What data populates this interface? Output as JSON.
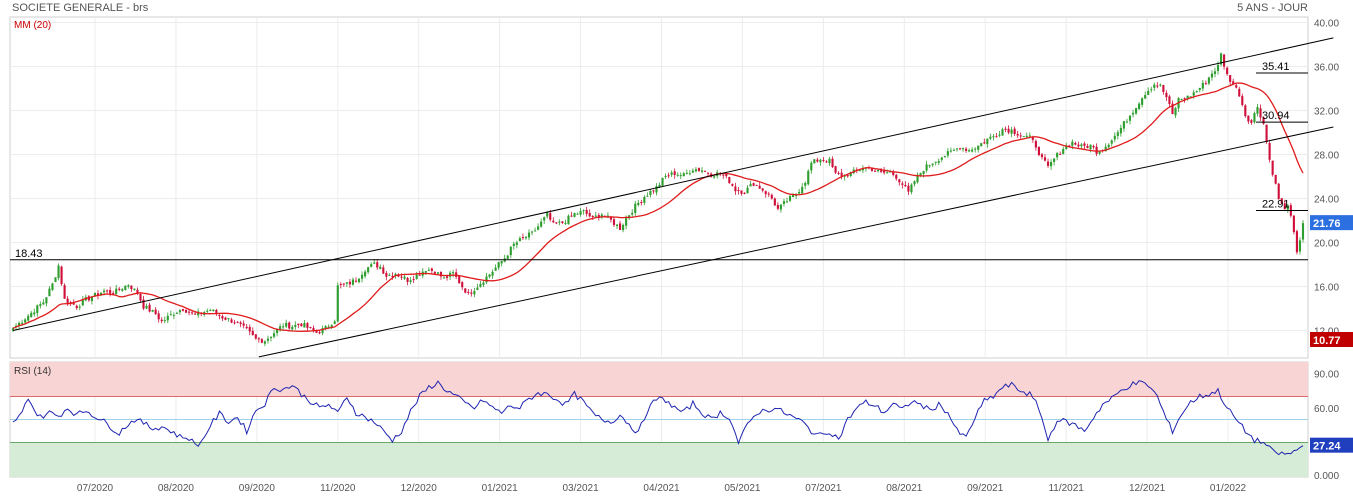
{
  "header": {
    "title": "SOCIETE GENERALE - brs",
    "period": "5 ANS - JOUR"
  },
  "colors": {
    "candle_up": "#2e9e2e",
    "candle_down": "#d0103a",
    "ma_line": "#e01b1b",
    "rsi_line": "#1f24b0",
    "overbought_fill": "#f9d4d4",
    "oversold_fill": "#d6ecd6",
    "last_price_badge": "#2b6fe0",
    "low_badge": "#c00000",
    "rsi_badge": "#1f3fbf"
  },
  "chart_data": [
    {
      "type": "candlestick",
      "title": "SOCIETE GENERALE - brs",
      "indicator": {
        "name": "MM (20)"
      },
      "yticks": [
        "40.00",
        "36.00",
        "32.00",
        "28.00",
        "24.00",
        "20.00",
        "16.00",
        "12.00"
      ],
      "ylim": [
        9.5,
        40.5
      ],
      "xticks": [
        "07/2020",
        "08/2020",
        "09/2020",
        "11/2020",
        "12/2020",
        "01/2021",
        "03/2021",
        "04/2021",
        "05/2021",
        "07/2021",
        "08/2021",
        "09/2021",
        "11/2021",
        "12/2021",
        "01/2022"
      ],
      "price_path": [
        [
          0,
          12.2
        ],
        [
          6,
          13.6
        ],
        [
          10,
          14.6
        ],
        [
          13,
          16.2
        ],
        [
          15,
          17.9
        ],
        [
          17,
          14.8
        ],
        [
          21,
          14.2
        ],
        [
          24,
          14.8
        ],
        [
          30,
          15.6
        ],
        [
          33,
          15.4
        ],
        [
          38,
          16.2
        ],
        [
          41,
          15.4
        ],
        [
          43,
          14.2
        ],
        [
          47,
          13.5
        ],
        [
          49,
          12.8
        ],
        [
          53,
          13.6
        ],
        [
          56,
          14.0
        ],
        [
          60,
          13.4
        ],
        [
          65,
          13.9
        ],
        [
          69,
          13.2
        ],
        [
          73,
          12.8
        ],
        [
          77,
          12.0
        ],
        [
          80,
          11.2
        ],
        [
          83,
          11.1
        ],
        [
          86,
          11.8
        ],
        [
          89,
          12.5
        ],
        [
          92,
          12.4
        ],
        [
          95,
          12.6
        ],
        [
          98,
          12.1
        ],
        [
          100,
          11.8
        ],
        [
          103,
          12.2
        ],
        [
          106,
          13.0
        ],
        [
          107,
          16.0
        ],
        [
          110,
          16.2
        ],
        [
          113,
          16.6
        ],
        [
          116,
          17.6
        ],
        [
          119,
          18.0
        ],
        [
          121,
          17.8
        ],
        [
          123,
          17.0
        ],
        [
          126,
          17.2
        ],
        [
          130,
          16.6
        ],
        [
          133,
          17.0
        ],
        [
          136,
          17.6
        ],
        [
          139,
          17.4
        ],
        [
          142,
          16.7
        ],
        [
          145,
          17.2
        ],
        [
          148,
          16.0
        ],
        [
          150,
          15.3
        ],
        [
          152,
          15.8
        ],
        [
          155,
          16.6
        ],
        [
          158,
          17.4
        ],
        [
          162,
          18.6
        ],
        [
          165,
          19.8
        ],
        [
          168,
          20.4
        ],
        [
          171,
          20.8
        ],
        [
          174,
          21.8
        ],
        [
          176,
          22.5
        ],
        [
          178,
          21.6
        ],
        [
          181,
          21.8
        ],
        [
          185,
          22.6
        ],
        [
          188,
          22.8
        ],
        [
          191,
          22.2
        ],
        [
          194,
          22.6
        ],
        [
          197,
          22.0
        ],
        [
          200,
          21.3
        ],
        [
          202,
          22.2
        ],
        [
          205,
          23.3
        ],
        [
          208,
          24.2
        ],
        [
          212,
          25.0
        ],
        [
          215,
          26.0
        ],
        [
          218,
          26.3
        ],
        [
          221,
          26.1
        ],
        [
          224,
          26.7
        ],
        [
          227,
          26.6
        ],
        [
          230,
          26.2
        ],
        [
          233,
          26.3
        ],
        [
          236,
          25.6
        ],
        [
          238,
          24.8
        ],
        [
          241,
          24.6
        ],
        [
          244,
          25.4
        ],
        [
          247,
          24.8
        ],
        [
          250,
          24.0
        ],
        [
          252,
          23.0
        ],
        [
          255,
          23.8
        ],
        [
          258,
          24.4
        ],
        [
          261,
          25.6
        ],
        [
          263,
          27.2
        ],
        [
          266,
          27.6
        ],
        [
          269,
          27.4
        ],
        [
          271,
          26.2
        ],
        [
          274,
          26.1
        ],
        [
          277,
          26.4
        ],
        [
          280,
          26.8
        ],
        [
          283,
          26.7
        ],
        [
          286,
          26.3
        ],
        [
          289,
          26.4
        ],
        [
          291,
          26.0
        ],
        [
          293,
          25.3
        ],
        [
          295,
          24.5
        ],
        [
          297,
          25.6
        ],
        [
          300,
          26.7
        ],
        [
          303,
          27.3
        ],
        [
          306,
          27.8
        ],
        [
          309,
          28.2
        ],
        [
          312,
          28.7
        ],
        [
          315,
          28.4
        ],
        [
          318,
          28.8
        ],
        [
          321,
          29.4
        ],
        [
          324,
          29.8
        ],
        [
          326,
          30.3
        ],
        [
          329,
          30.2
        ],
        [
          332,
          29.8
        ],
        [
          335,
          29.5
        ],
        [
          337,
          28.8
        ],
        [
          339,
          27.6
        ],
        [
          341,
          26.8
        ],
        [
          343,
          27.6
        ],
        [
          346,
          28.6
        ],
        [
          349,
          29.1
        ],
        [
          352,
          28.7
        ],
        [
          355,
          28.8
        ],
        [
          357,
          28.3
        ],
        [
          359,
          28.5
        ],
        [
          361,
          29.1
        ],
        [
          364,
          30.0
        ],
        [
          367,
          31.2
        ],
        [
          370,
          32.4
        ],
        [
          373,
          33.6
        ],
        [
          376,
          34.4
        ],
        [
          378,
          34.2
        ],
        [
          380,
          33.2
        ],
        [
          382,
          31.6
        ],
        [
          384,
          33.0
        ],
        [
          387,
          33.2
        ],
        [
          390,
          33.8
        ],
        [
          393,
          34.6
        ],
        [
          395,
          35.4
        ],
        [
          397,
          36.0
        ],
        [
          398,
          37.1
        ],
        [
          400,
          35.2
        ],
        [
          402,
          34.4
        ],
        [
          404,
          33.5
        ],
        [
          406,
          31.6
        ],
        [
          408,
          30.9
        ],
        [
          410,
          32.4
        ],
        [
          412,
          30.8
        ],
        [
          414,
          27.5
        ],
        [
          415,
          26.4
        ],
        [
          417,
          24.0
        ],
        [
          419,
          22.9
        ],
        [
          420,
          23.6
        ],
        [
          422,
          20.8
        ],
        [
          423,
          18.9
        ],
        [
          425,
          21.76
        ]
      ],
      "ma_label": "MM (20)",
      "channel_upper": [
        [
          0,
          12.0
        ],
        [
          435,
          38.6
        ]
      ],
      "channel_lower": [
        [
          81,
          9.6
        ],
        [
          435,
          30.5
        ]
      ],
      "h_lines": [
        {
          "label": "18.43",
          "value": 18.43
        },
        {
          "label": "35.41",
          "value": 35.41
        },
        {
          "label": "30.94",
          "value": 30.94
        },
        {
          "label": "22.91",
          "value": 22.91
        }
      ],
      "last_price": {
        "label": "21.76",
        "value": 21.76
      },
      "low_marker": {
        "label": "10.77",
        "value": 10.77
      }
    },
    {
      "type": "line",
      "title": "RSI (14)",
      "yticks": [
        "90.00",
        "60.00",
        "30.00",
        "0.000"
      ],
      "ylim": [
        0,
        100
      ],
      "bands": {
        "overbought": 70,
        "oversold": 30,
        "mid": 50
      },
      "rsi_path": [
        [
          0,
          48
        ],
        [
          3,
          55
        ],
        [
          5,
          70
        ],
        [
          7,
          58
        ],
        [
          9,
          52
        ],
        [
          12,
          56
        ],
        [
          15,
          53
        ],
        [
          18,
          60
        ],
        [
          21,
          54
        ],
        [
          24,
          58
        ],
        [
          27,
          53
        ],
        [
          30,
          48
        ],
        [
          33,
          42
        ],
        [
          35,
          38
        ],
        [
          37,
          44
        ],
        [
          40,
          50
        ],
        [
          43,
          47
        ],
        [
          46,
          42
        ],
        [
          49,
          44
        ],
        [
          52,
          40
        ],
        [
          55,
          35
        ],
        [
          58,
          34
        ],
        [
          60,
          28
        ],
        [
          62,
          30
        ],
        [
          65,
          45
        ],
        [
          68,
          55
        ],
        [
          71,
          48
        ],
        [
          74,
          52
        ],
        [
          77,
          40
        ],
        [
          80,
          58
        ],
        [
          83,
          64
        ],
        [
          86,
          78
        ],
        [
          89,
          76
        ],
        [
          92,
          80
        ],
        [
          95,
          72
        ],
        [
          98,
          66
        ],
        [
          101,
          60
        ],
        [
          104,
          63
        ],
        [
          107,
          55
        ],
        [
          110,
          70
        ],
        [
          113,
          56
        ],
        [
          116,
          52
        ],
        [
          119,
          48
        ],
        [
          122,
          40
        ],
        [
          125,
          32
        ],
        [
          128,
          40
        ],
        [
          131,
          57
        ],
        [
          134,
          70
        ],
        [
          137,
          78
        ],
        [
          140,
          82
        ],
        [
          143,
          75
        ],
        [
          146,
          70
        ],
        [
          149,
          64
        ],
        [
          152,
          60
        ],
        [
          155,
          67
        ],
        [
          158,
          60
        ],
        [
          161,
          56
        ],
        [
          164,
          62
        ],
        [
          167,
          60
        ],
        [
          170,
          68
        ],
        [
          173,
          73
        ],
        [
          176,
          72
        ],
        [
          179,
          68
        ],
        [
          182,
          63
        ],
        [
          185,
          72
        ],
        [
          188,
          65
        ],
        [
          191,
          55
        ],
        [
          194,
          50
        ],
        [
          197,
          48
        ],
        [
          200,
          54
        ],
        [
          203,
          46
        ],
        [
          206,
          38
        ],
        [
          209,
          58
        ],
        [
          212,
          68
        ],
        [
          215,
          67
        ],
        [
          218,
          60
        ],
        [
          221,
          56
        ],
        [
          224,
          64
        ],
        [
          227,
          56
        ],
        [
          230,
          50
        ],
        [
          233,
          56
        ],
        [
          236,
          52
        ],
        [
          239,
          30
        ],
        [
          242,
          45
        ],
        [
          245,
          56
        ],
        [
          248,
          58
        ],
        [
          251,
          60
        ],
        [
          254,
          56
        ],
        [
          257,
          52
        ],
        [
          260,
          48
        ],
        [
          263,
          40
        ],
        [
          266,
          36
        ],
        [
          269,
          40
        ],
        [
          272,
          33
        ],
        [
          275,
          50
        ],
        [
          278,
          60
        ],
        [
          281,
          65
        ],
        [
          284,
          62
        ],
        [
          287,
          56
        ],
        [
          290,
          64
        ],
        [
          293,
          58
        ],
        [
          296,
          66
        ],
        [
          299,
          63
        ],
        [
          302,
          58
        ],
        [
          305,
          63
        ],
        [
          308,
          56
        ],
        [
          311,
          40
        ],
        [
          314,
          34
        ],
        [
          317,
          52
        ],
        [
          320,
          66
        ],
        [
          323,
          70
        ],
        [
          326,
          78
        ],
        [
          329,
          80
        ],
        [
          332,
          75
        ],
        [
          335,
          72
        ],
        [
          338,
          60
        ],
        [
          341,
          32
        ],
        [
          344,
          50
        ],
        [
          347,
          48
        ],
        [
          350,
          45
        ],
        [
          353,
          40
        ],
        [
          356,
          52
        ],
        [
          359,
          63
        ],
        [
          362,
          68
        ],
        [
          365,
          75
        ],
        [
          368,
          80
        ],
        [
          371,
          82
        ],
        [
          374,
          80
        ],
        [
          377,
          70
        ],
        [
          380,
          50
        ],
        [
          382,
          40
        ],
        [
          385,
          55
        ],
        [
          388,
          65
        ],
        [
          391,
          70
        ],
        [
          394,
          72
        ],
        [
          397,
          75
        ],
        [
          400,
          60
        ],
        [
          403,
          50
        ],
        [
          406,
          40
        ],
        [
          409,
          32
        ],
        [
          412,
          30
        ],
        [
          415,
          22
        ],
        [
          418,
          20
        ],
        [
          421,
          20
        ],
        [
          423,
          24
        ],
        [
          425,
          27.24
        ]
      ],
      "last_value": {
        "label": "27.24",
        "value": 27.24
      }
    }
  ]
}
